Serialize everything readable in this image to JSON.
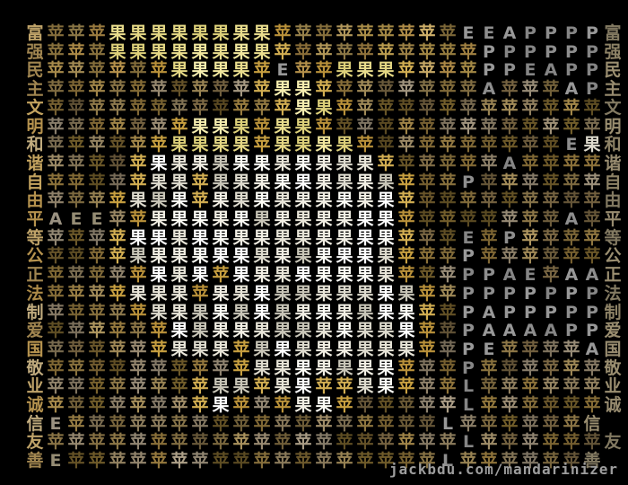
{
  "site_credit": "jackbdu.com/mandarinizer",
  "mosaic": {
    "description": "Apple silhouette mosaic made of Chinese characters and letters on black",
    "characters_used": "苹 果 E A P L",
    "edge_slogan": "富强民主文明和谐自由平等公正法制爱国敬业诚信友善",
    "grid_columns": 29,
    "grid_rows": 24,
    "rows": [
      "富苹苹苹果果果果果果果果苹苹苹苹苹苹苹苹苹EEAPPPP富",
      "强苹苹苹果果果果果果果果苹苹苹苹苹苹苹苹苹苹PPPPPP强",
      "民苹苹苹苹苹苹果果果果苹E苹苹果果果苹苹苹苹PPEAPP民",
      "主苹苹苹苹苹苹苹苹苹苹苹果果苹苹苹苹苹苹苹苹A苹苹苹AP主",
      "文苹苹苹苹苹苹苹苹苹苹苹苹果果苹苹苹苹苹苹苹苹苹苹苹苹苹文",
      "明苹苹苹苹苹苹苹果果果苹果果苹苹苹苹苹苹苹苹苹苹苹苹苹苹明",
      "和苹苹苹苹苹苹果果果果苹果果果果苹苹苹苹苹苹苹苹苹苹E果和",
      "谐苹苹苹苹苹果果果果果果果果果果果苹苹苹苹苹苹A苹苹苹苹谐",
      "自苹苹苹苹苹果果苹果果果果果果果果果苹苹苹P苹苹苹苹苹苹自",
      "由苹苹苹苹果果果苹果果果果果果果果果苹苹苹苹苹苹苹苹苹苹由",
      "平AEE苹苹果果果果果果果果果果果果苹苹苹苹苹苹苹苹A苹平",
      "等苹苹苹苹果果果果果果果果果果果果果苹苹苹E苹P苹苹苹苹等",
      "公苹苹苹苹果果果果果果果果果果果果果苹苹苹P苹苹苹苹苹苹公",
      "正苹苹苹苹苹果果果苹果果果果果果果果苹苹苹PPAE苹AA正",
      "法苹苹苹苹果果果苹果果果果果果果果果果苹苹PPPPPPP法",
      "制苹苹苹苹苹果果果果果果果果果果果果果苹苹PAPPPPP制",
      "爱苹苹苹苹苹苹果果果果果果果果果果果果苹苹PAAAAPP爱",
      "国苹苹苹苹苹苹果果果苹果果果果果果果果苹苹PE苹苹苹苹A国",
      "敬苹苹苹苹苹苹苹苹苹苹果果果果果果果苹苹苹P苹苹苹苹苹苹敬",
      "业苹苹苹苹苹苹苹苹果果苹果果苹苹果果苹苹苹L苹苹苹苹苹苹业",
      "诚苹苹苹苹苹苹苹苹果苹苹苹果果苹苹苹苹苹苹L苹苹苹苹苹苹诚",
      "信E苹苹苹苹苹苹苹苹苹苹苹苹苹苹苹苹苹苹L苹苹苹苹苹苹信",
      "友苹苹苹苹苹苹苹苹苹苹苹苹苹苹苹苹苹苹苹苹L苹苹苹苹苹苹友",
      "善E苹苹苹苹苹苹苹苹苹苹苹苹苹苹苹苹苹苹L苹苹苹苹苹苹善"
    ],
    "palette": {
      "background_black": "#000000",
      "apple_white": [
        "#ffffff",
        "#f2efe4",
        "#dedbce",
        "#c9c6b8",
        "#fdfdf6",
        "#e8e5d8"
      ],
      "apple_yellow": [
        "#e9dd8d",
        "#f1e79e",
        "#ddd07a",
        "#f6eeb0",
        "#e4d784"
      ],
      "gold_sprinkle": [
        "#c79f40",
        "#d2ae52",
        "#b9913a"
      ],
      "background_gold": [
        "#8a7038",
        "#9a7d40",
        "#a98c4c",
        "#7c652f",
        "#b39a62",
        "#927b4a",
        "#a3906b",
        "#86714a",
        "#9f9076",
        "#75602c",
        "#b0a28a"
      ],
      "background_gold_bright": [
        "#c9a855",
        "#b8934c",
        "#cfb06a",
        "#a98c4c",
        "#bfa35f"
      ],
      "slogan_left": [
        "#b5924e",
        "#c3a35f",
        "#ac8a48",
        "#bfa369",
        "#a08550",
        "#c0ab7e"
      ],
      "slogan_right": [
        "#8d8266",
        "#978b6f",
        "#837a62",
        "#9a8e70"
      ],
      "letter_gray": [
        "#8e8e8e",
        "#989898",
        "#858585"
      ],
      "letter_warm": [
        "#a59d8c",
        "#9a9181",
        "#958c74"
      ],
      "credit_gray": "#9d9d9d"
    }
  }
}
